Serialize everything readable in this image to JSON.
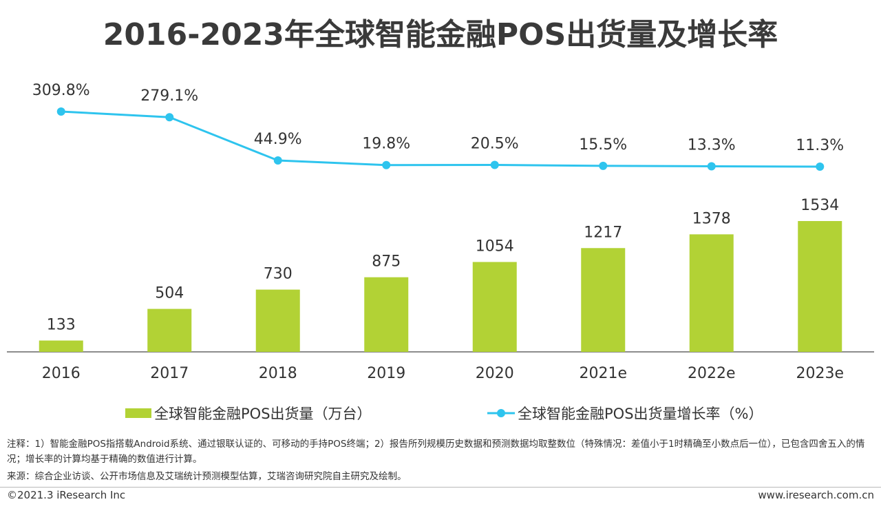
{
  "title": "2016-2023年全球智能金融POS出货量及增长率",
  "chart_data": {
    "type": "bar",
    "categories": [
      "2016",
      "2017",
      "2018",
      "2019",
      "2020",
      "2021e",
      "2022e",
      "2023e"
    ],
    "series": [
      {
        "name": "全球智能金融POS出货量（万台）",
        "type": "bar",
        "values": [
          133,
          504,
          730,
          875,
          1054,
          1217,
          1378,
          1534
        ],
        "labels": [
          "133",
          "504",
          "730",
          "875",
          "1054",
          "1217",
          "1378",
          "1534"
        ]
      },
      {
        "name": "全球智能金融POS出货量增长率（%）",
        "type": "line",
        "values": [
          309.8,
          279.1,
          44.9,
          19.8,
          20.5,
          15.5,
          13.3,
          11.3
        ],
        "labels": [
          "309.8%",
          "279.1%",
          "44.9%",
          "19.8%",
          "20.5%",
          "15.5%",
          "13.3%",
          "11.3%"
        ]
      }
    ],
    "colors": {
      "bar": "#b2d235",
      "line": "#2ec4ee",
      "axis": "#666666"
    },
    "grid": false,
    "legend": "bottom"
  },
  "notes": {
    "note": "注释：1）智能金融POS指搭载Android系统、通过银联认证的、可移动的手持POS终端；2）报告所列规模历史数据和预测数据均取整数位（特殊情况：差值小于1时精确至小数点后一位），已包含四舍五入的情况；增长率的计算均基于精确的数值进行计算。",
    "source": "来源：综合企业访谈、公开市场信息及艾瑞统计预测模型估算，艾瑞咨询研究院自主研究及绘制。"
  },
  "footer": {
    "copyright": "©2021.3 iResearch Inc",
    "site": "www.iresearch.com.cn"
  }
}
